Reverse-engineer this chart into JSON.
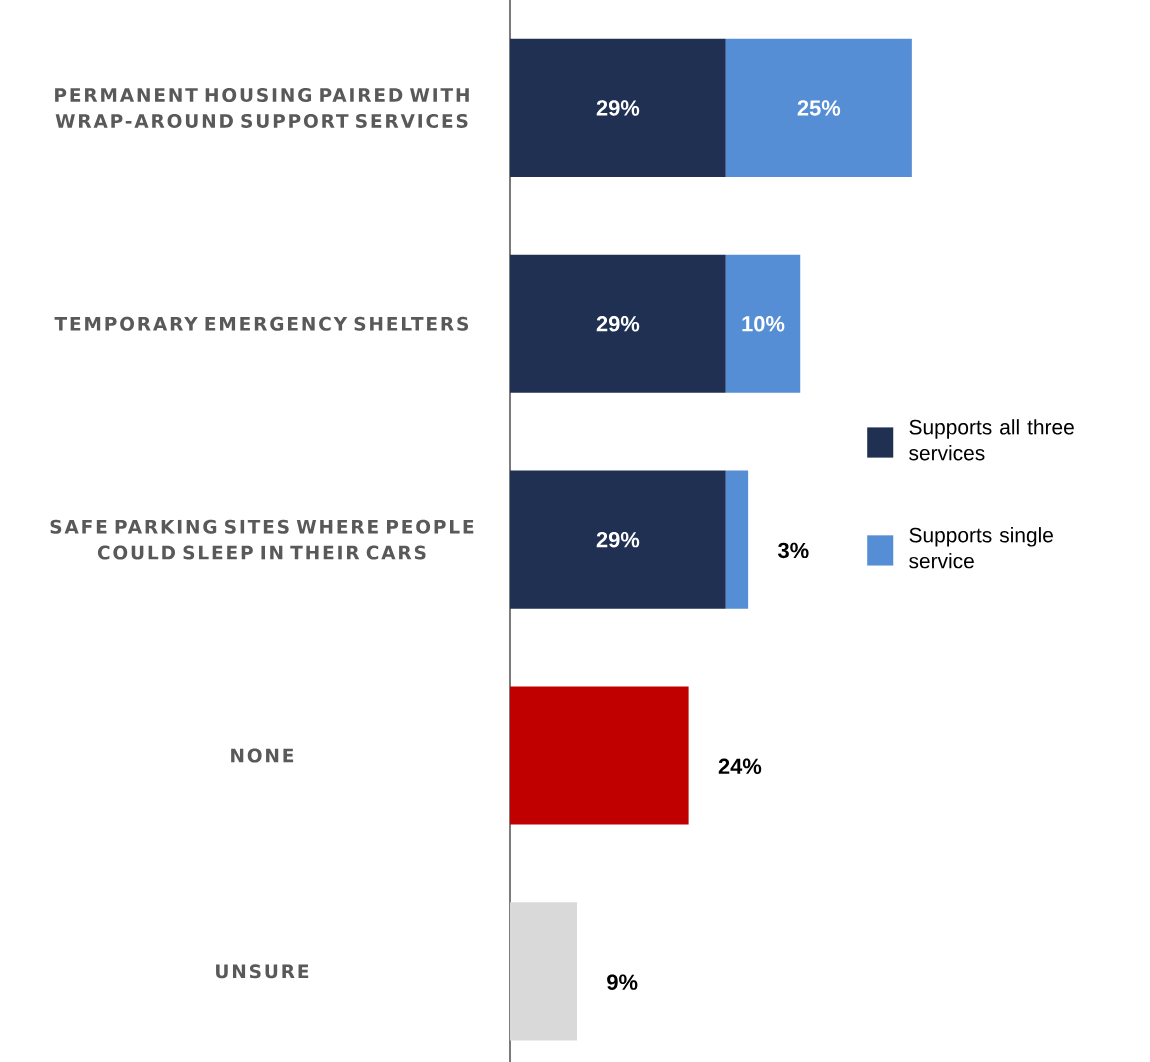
{
  "chart_data": {
    "type": "bar",
    "orientation": "horizontal",
    "stacked": true,
    "categories": [
      "PERMANENT HOUSING PAIRED WITH WRAP-AROUND SUPPORT SERVICES",
      "TEMPORARY EMERGENCY SHELTERS",
      "SAFE PARKING SITES WHERE PEOPLE COULD SLEEP IN THEIR CARS",
      "NONE",
      "UNSURE"
    ],
    "series": [
      {
        "name": "Supports all three services",
        "color": "#1f3052",
        "values": [
          29,
          29,
          29,
          null,
          null
        ],
        "value_labels": [
          "29%",
          "29%",
          "29%",
          null,
          null
        ]
      },
      {
        "name": "Supports single service",
        "color": "#558ed5",
        "values": [
          25,
          10,
          3,
          null,
          null
        ],
        "value_labels": [
          "25%",
          "10%",
          "3%",
          null,
          null
        ]
      },
      {
        "colors": [
          "#1f3052",
          "#1f3052",
          "#1f3052",
          "#c00000",
          "#d9d9d9"
        ],
        "values": [
          null,
          null,
          null,
          24,
          9
        ],
        "value_labels": [
          null,
          null,
          null,
          "24%",
          "9%"
        ]
      }
    ],
    "tick_labels": "y",
    "legend": "right",
    "grid": false
  }
}
